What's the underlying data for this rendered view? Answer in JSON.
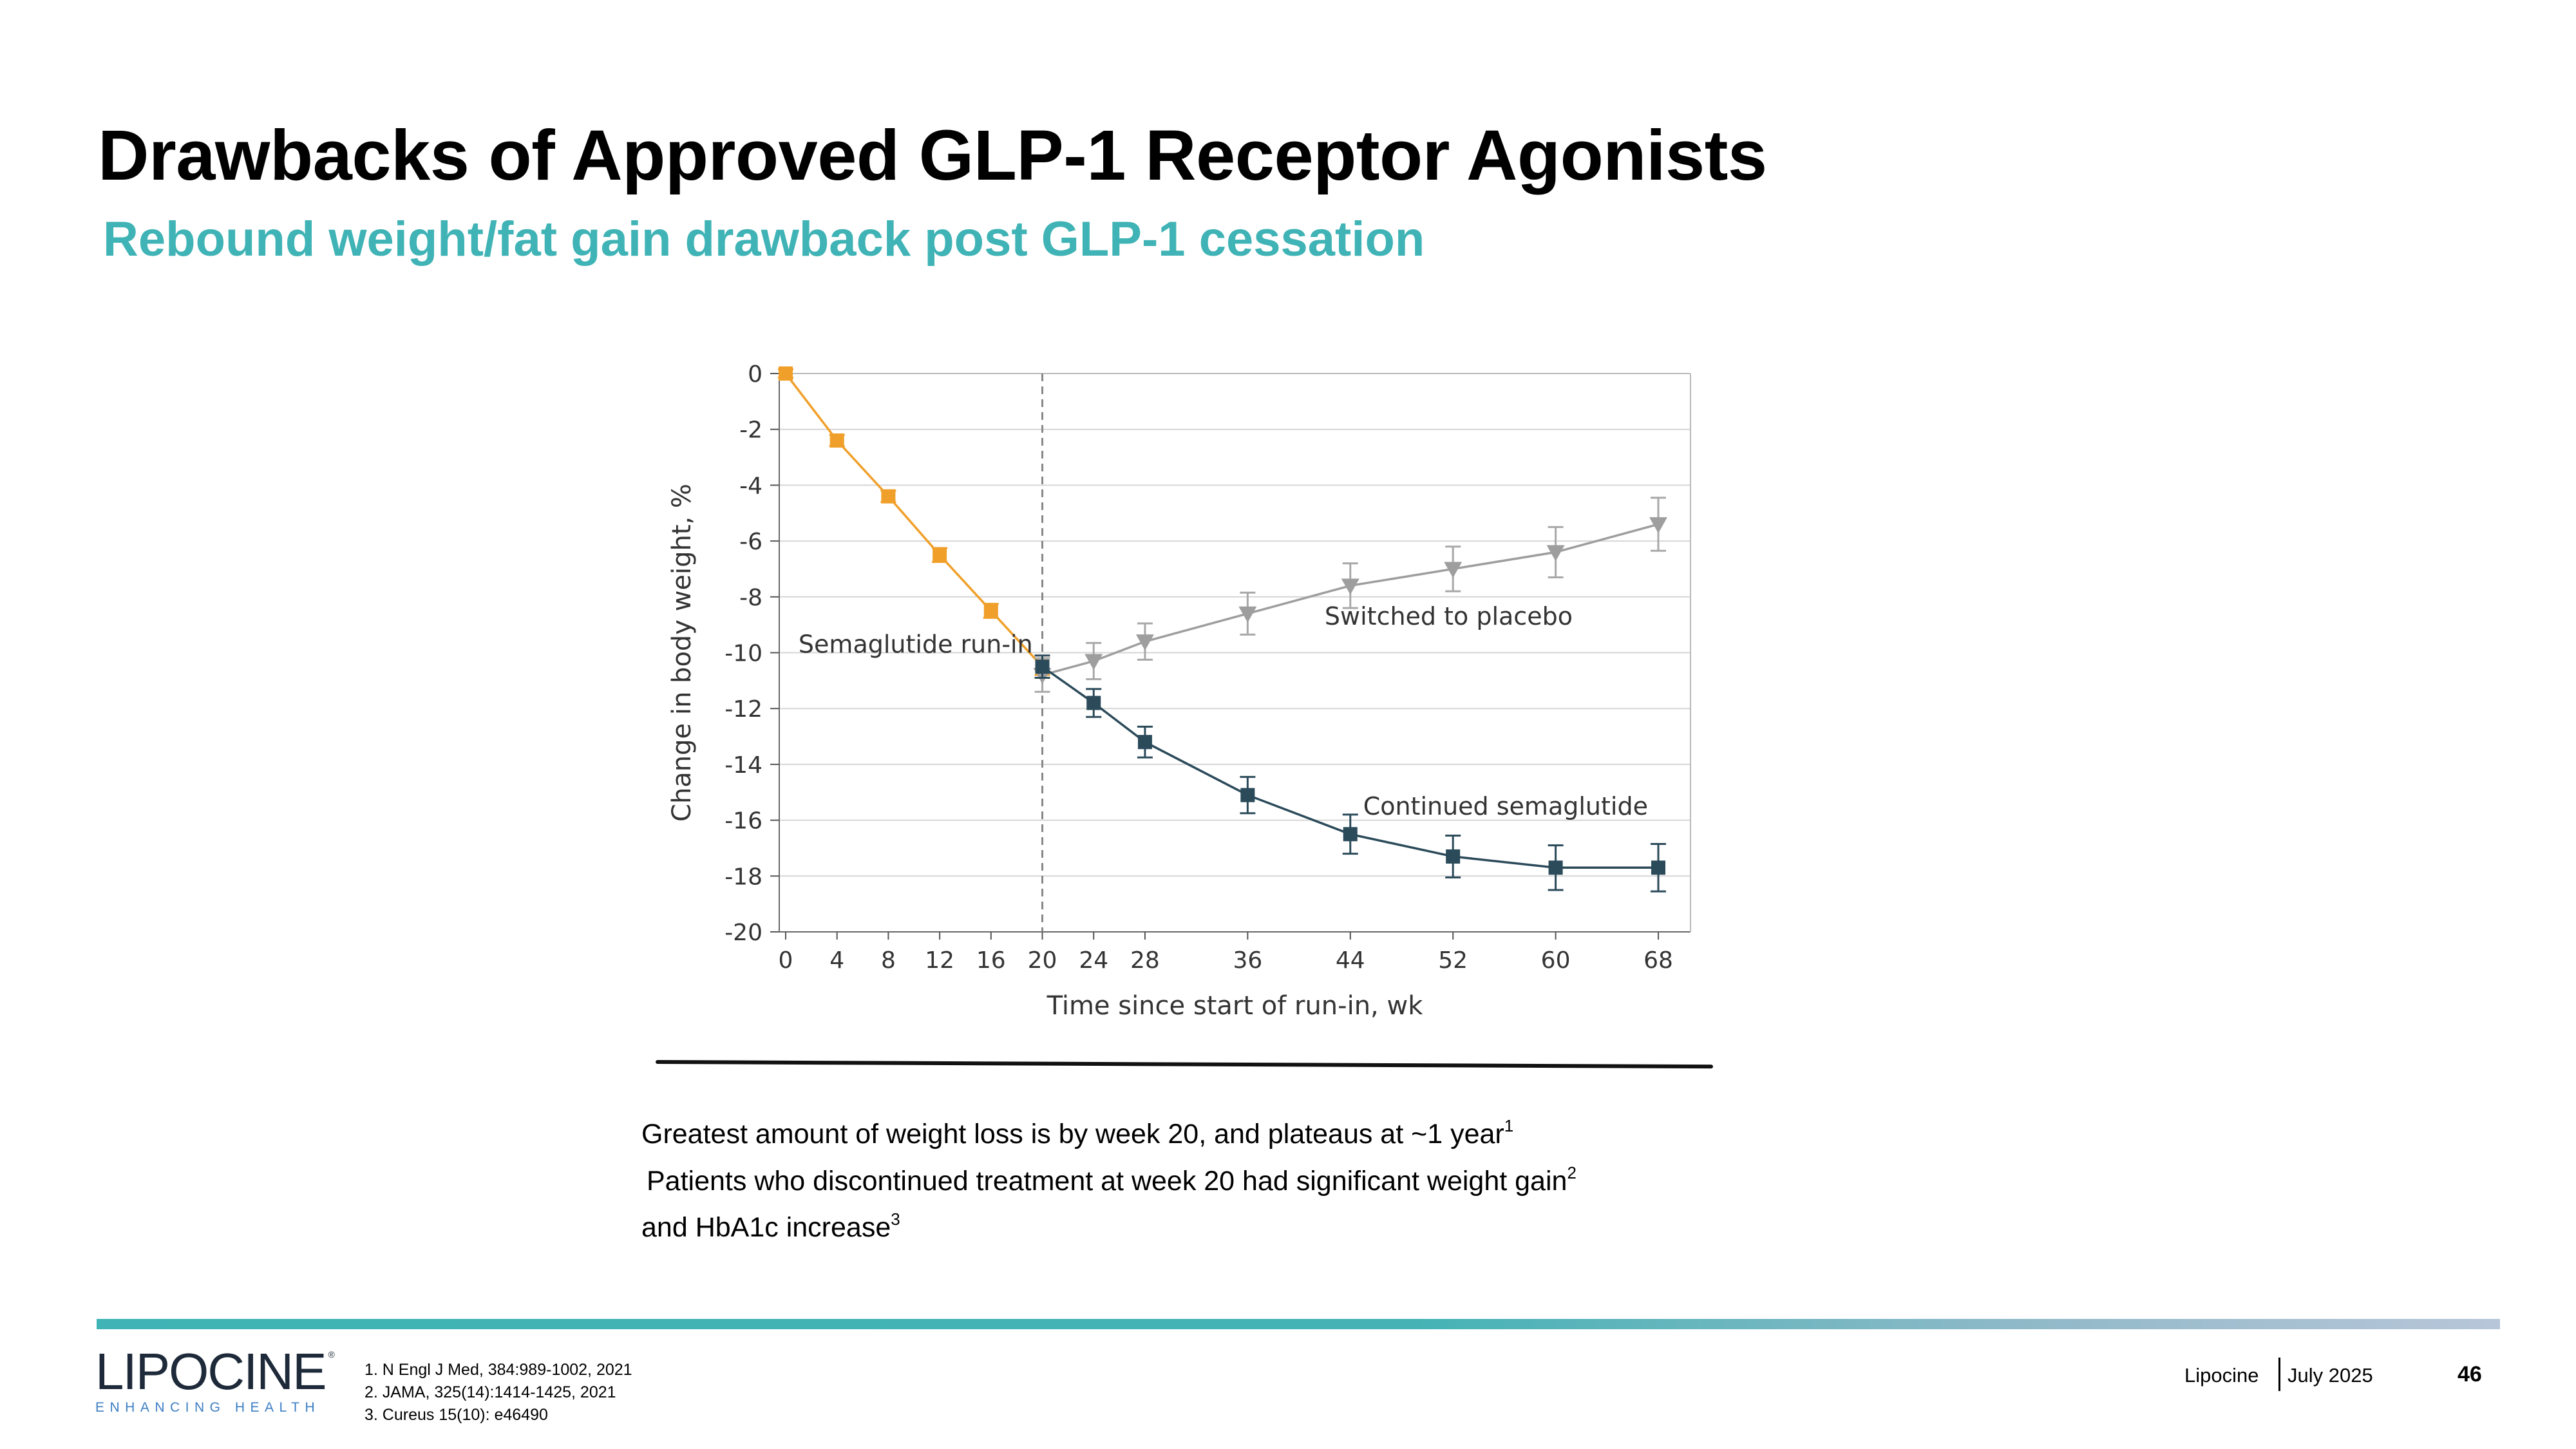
{
  "slide": {
    "title": "Drawbacks of Approved GLP-1 Receptor Agonists",
    "subtitle": "Rebound weight/fat gain drawback post GLP-1 cessation"
  },
  "chart_data": {
    "type": "line",
    "xlabel": "Time since start of run-in, wk",
    "ylabel": "Change in body weight, %",
    "xlim": [
      0,
      68
    ],
    "ylim": [
      -20,
      0
    ],
    "x_ticks": [
      0,
      4,
      8,
      12,
      16,
      20,
      24,
      28,
      36,
      44,
      52,
      60,
      68
    ],
    "y_ticks": [
      0,
      -2,
      -4,
      -6,
      -8,
      -10,
      -12,
      -14,
      -16,
      -18,
      -20
    ],
    "grid": "horizontal",
    "vertical_reference_x": 20,
    "series": [
      {
        "name": "Semaglutide run-in",
        "color": "#f0a02a",
        "marker": "square",
        "x": [
          0,
          4,
          8,
          12,
          16,
          20
        ],
        "values": [
          0,
          -2.4,
          -4.4,
          -6.5,
          -8.5,
          -10.5
        ],
        "error": [
          0.15,
          0.2,
          0.2,
          0.25,
          0.25,
          0.3
        ]
      },
      {
        "name": "Switched to placebo",
        "color": "#9e9e9e",
        "marker": "triangle-down",
        "x": [
          20,
          24,
          28,
          36,
          44,
          52,
          60,
          68
        ],
        "values": [
          -10.8,
          -10.3,
          -9.6,
          -8.6,
          -7.6,
          -7.0,
          -6.4,
          -5.4
        ],
        "error": [
          0.6,
          0.65,
          0.65,
          0.75,
          0.8,
          0.8,
          0.9,
          0.95
        ]
      },
      {
        "name": "Continued semaglutide",
        "color": "#2b4a5a",
        "marker": "square",
        "x": [
          20,
          24,
          28,
          36,
          44,
          52,
          60,
          68
        ],
        "values": [
          -10.5,
          -11.8,
          -13.2,
          -15.1,
          -16.5,
          -17.3,
          -17.7,
          -17.7
        ],
        "error": [
          0.4,
          0.5,
          0.55,
          0.65,
          0.7,
          0.75,
          0.8,
          0.85
        ]
      }
    ],
    "annotations": [
      {
        "text": "Semaglutide run-in",
        "x": 1,
        "y": -10
      },
      {
        "text": "Switched to placebo",
        "x": 42,
        "y": -9
      },
      {
        "text": "Continued semaglutide",
        "x": 45,
        "y": -15.8
      }
    ]
  },
  "notes": {
    "line1": "Greatest amount of weight loss is by week 20, and plateaus at ~1 year",
    "line1_sup": "1",
    "line2": "Patients who discontinued treatment at week 20 had significant weight gain",
    "line2_sup": "2",
    "line3": "and HbA1c increase",
    "line3_sup": "3"
  },
  "footer": {
    "logo_name": "LIPOCINE",
    "logo_reg": "®",
    "logo_tagline": "ENHANCING HEALTH",
    "references": [
      "1. N Engl J Med, 384:989-1002, 2021",
      "2. JAMA, 325(14):1414-1425, 2021",
      "3. Cureus 15(10): e46490"
    ],
    "company": "Lipocine",
    "date": "July 2025",
    "page_number": "46"
  }
}
